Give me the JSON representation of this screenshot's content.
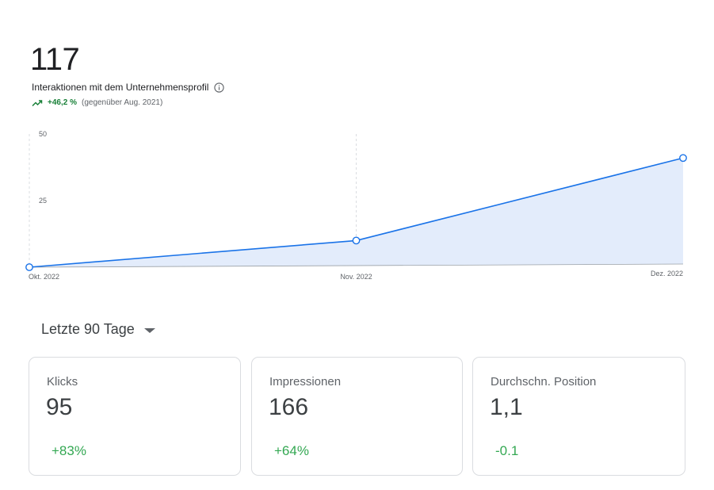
{
  "summary": {
    "total": "117",
    "label": "Interaktionen mit dem Unternehmensprofil",
    "info_icon": "info-icon",
    "trend_icon": "trending-up-icon",
    "change": "+46,2 %",
    "comparison": "(gegenüber Aug. 2021)"
  },
  "chart_data": {
    "type": "area",
    "x": [
      "Okt. 2022",
      "Nov. 2022",
      "Dez. 2022"
    ],
    "series": [
      {
        "values": [
          0,
          10,
          41
        ]
      }
    ],
    "ylim": [
      0,
      50
    ],
    "yticks": [
      {
        "value": 50,
        "label": "50"
      },
      {
        "value": 25,
        "label": "25"
      }
    ],
    "grid": "vertical dashed",
    "colors": {
      "line": "#1a73e8",
      "fill": "#e3ecfb",
      "marker_fill": "#ffffff"
    }
  },
  "period": {
    "label": "Letzte 90 Tage",
    "icon": "dropdown-arrow-icon"
  },
  "cards": [
    {
      "label": "Klicks",
      "value": "95",
      "change": "+83%"
    },
    {
      "label": "Impressionen",
      "value": "166",
      "change": "+64%"
    },
    {
      "label": "Durchschn. Position",
      "value": "1,1",
      "change": "-0.1"
    }
  ],
  "colors": {
    "positive": "#34a853",
    "positive_dark": "#188038",
    "accent": "#1a73e8"
  }
}
